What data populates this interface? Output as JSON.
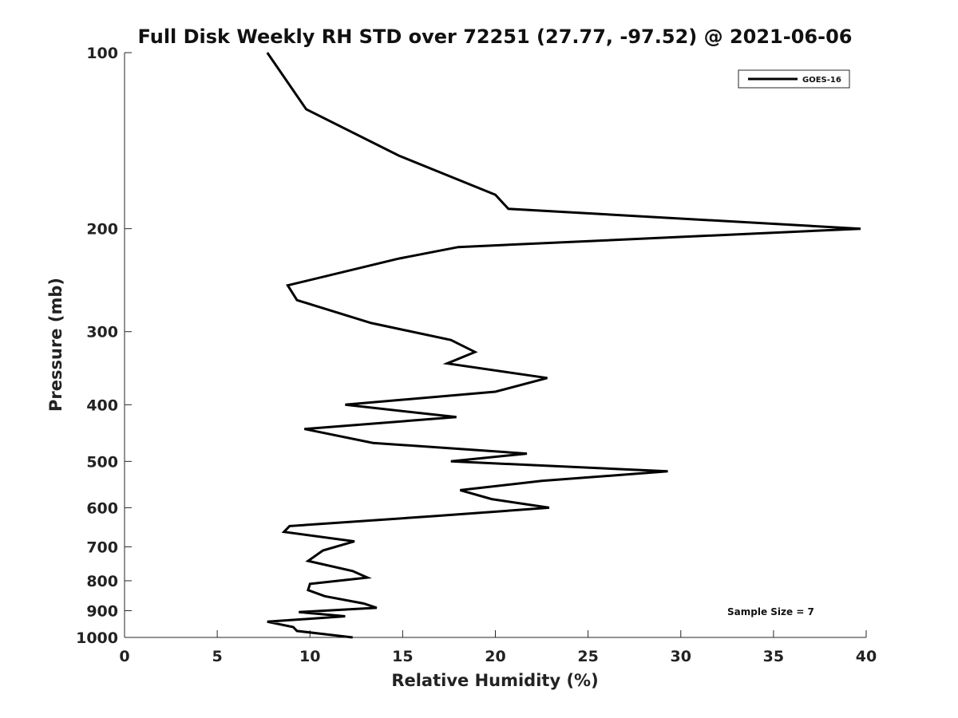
{
  "chart_data": {
    "type": "line",
    "title": "Full Disk Weekly RH STD over 72251 (27.77, -97.52) @ 2021-06-06",
    "xlabel": "Relative Humidity (%)",
    "ylabel": "Pressure (mb)",
    "xlim": [
      0,
      40
    ],
    "ylim": [
      100,
      1000
    ],
    "y_scale": "log",
    "y_reversed": true,
    "x_ticks": [
      0,
      5,
      10,
      15,
      20,
      25,
      30,
      35,
      40
    ],
    "y_ticks": [
      100,
      200,
      300,
      400,
      500,
      600,
      700,
      800,
      900,
      1000
    ],
    "grid": false,
    "legend": {
      "position": "top-right",
      "entries": [
        "GOES-16"
      ]
    },
    "annotation": "Sample Size = 7",
    "series": [
      {
        "name": "GOES-16",
        "color": "#000000",
        "points": [
          [
            7.7,
            100
          ],
          [
            9.8,
            125
          ],
          [
            14.8,
            150
          ],
          [
            20.0,
            175
          ],
          [
            20.7,
            185
          ],
          [
            39.7,
            200
          ],
          [
            18.0,
            215
          ],
          [
            14.8,
            225
          ],
          [
            8.8,
            250
          ],
          [
            9.3,
            265
          ],
          [
            13.3,
            290
          ],
          [
            17.6,
            310
          ],
          [
            18.9,
            325
          ],
          [
            17.4,
            340
          ],
          [
            22.8,
            360
          ],
          [
            20.0,
            380
          ],
          [
            11.9,
            400
          ],
          [
            17.9,
            420
          ],
          [
            9.7,
            440
          ],
          [
            13.4,
            465
          ],
          [
            21.7,
            485
          ],
          [
            17.6,
            500
          ],
          [
            29.3,
            520
          ],
          [
            22.5,
            540
          ],
          [
            18.1,
            560
          ],
          [
            19.8,
            580
          ],
          [
            22.9,
            600
          ],
          [
            16.8,
            620
          ],
          [
            8.9,
            645
          ],
          [
            8.6,
            660
          ],
          [
            12.4,
            685
          ],
          [
            10.7,
            710
          ],
          [
            9.9,
            740
          ],
          [
            12.3,
            770
          ],
          [
            13.1,
            790
          ],
          [
            10.0,
            810
          ],
          [
            9.9,
            830
          ],
          [
            10.8,
            850
          ],
          [
            12.9,
            875
          ],
          [
            13.6,
            890
          ],
          [
            9.4,
            905
          ],
          [
            11.9,
            920
          ],
          [
            7.7,
            940
          ],
          [
            9.1,
            960
          ],
          [
            9.3,
            975
          ],
          [
            12.3,
            1000
          ]
        ]
      }
    ]
  }
}
